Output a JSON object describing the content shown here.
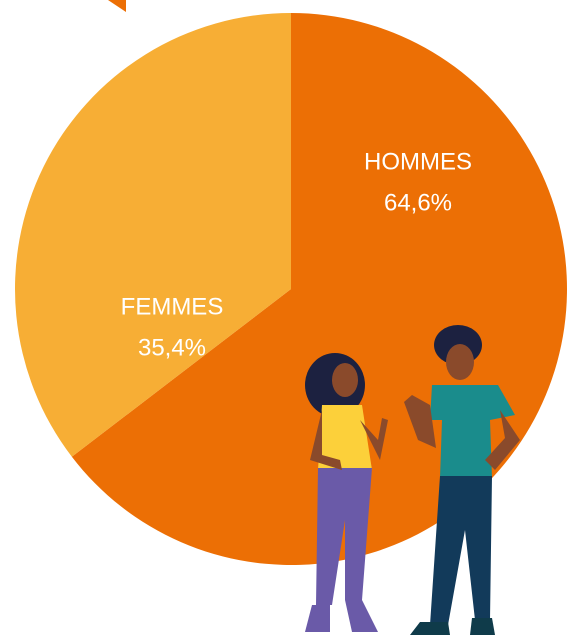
{
  "chart_data": {
    "type": "pie",
    "categories": [
      "HOMMES",
      "FEMMES"
    ],
    "values": [
      64.6,
      35.4
    ],
    "value_labels": [
      "64,6%",
      "35,4%"
    ],
    "colors": [
      "#ec6f05",
      "#f7ae35"
    ]
  }
}
